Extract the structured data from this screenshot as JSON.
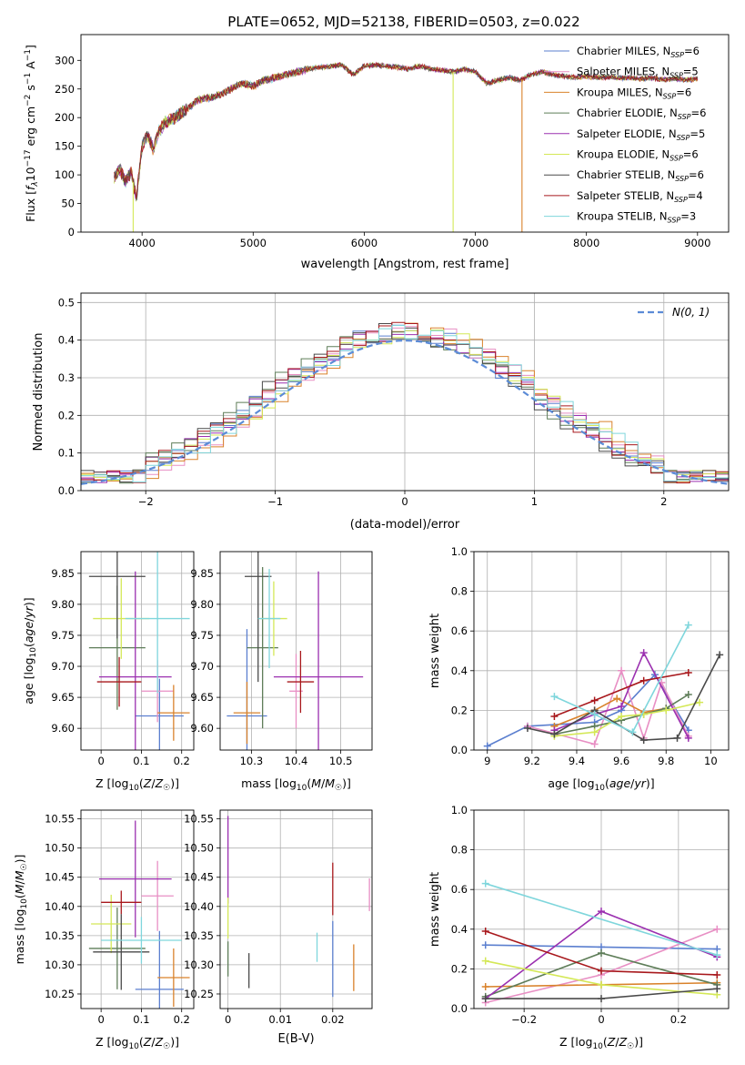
{
  "figure_title": "PLATE=0652, MJD=52138, FIBERID=0503, z=0.022",
  "colors": {
    "chabrier_miles": "#5b7fcf",
    "salpeter_miles": "#e88fc4",
    "kroupa_miles": "#d9822b",
    "chabrier_elodie": "#5e7d58",
    "salpeter_elodie": "#9b30b0",
    "kroupa_elodie": "#d4e857",
    "chabrier_stelib": "#4a4a4a",
    "salpeter_stelib": "#a8181c",
    "kroupa_stelib": "#7fd6dc",
    "normal": "#5b8bd6"
  },
  "chart_data": [
    {
      "id": "spectrum",
      "type": "line",
      "title": "PLATE=0652, MJD=52138, FIBERID=0503, z=0.022",
      "xlabel": "wavelength [Angstrom, rest frame]",
      "ylabel": "Flux [f_λ 10⁻¹⁷ erg cm⁻² s⁻¹ A⁻¹]",
      "xlim": [
        3450,
        9280
      ],
      "ylim": [
        0,
        345
      ],
      "xticks": [
        4000,
        5000,
        6000,
        7000,
        8000,
        9000
      ],
      "yticks": [
        0,
        50,
        100,
        150,
        200,
        250,
        300
      ],
      "legend_position": "top-right",
      "x": [
        3750,
        3800,
        3850,
        3900,
        3950,
        4000,
        4050,
        4100,
        4150,
        4200,
        4300,
        4400,
        4500,
        4600,
        4700,
        4800,
        4900,
        5000,
        5100,
        5200,
        5300,
        5400,
        5500,
        5600,
        5700,
        5800,
        5900,
        6000,
        6100,
        6200,
        6300,
        6400,
        6500,
        6600,
        6700,
        6800,
        6900,
        7000,
        7100,
        7200,
        7300,
        7400,
        7500,
        7600,
        7700,
        7800,
        7900,
        8000,
        8100,
        8200,
        8300,
        8400,
        8500,
        8600,
        8700,
        8800,
        8900,
        9000
      ],
      "y": [
        95,
        110,
        90,
        105,
        60,
        150,
        170,
        145,
        175,
        190,
        200,
        215,
        230,
        235,
        240,
        250,
        260,
        255,
        265,
        270,
        275,
        280,
        285,
        288,
        290,
        292,
        275,
        290,
        292,
        290,
        288,
        285,
        290,
        285,
        283,
        280,
        285,
        280,
        260,
        265,
        270,
        265,
        275,
        280,
        275,
        272,
        270,
        272,
        270,
        271,
        269,
        270,
        268,
        269,
        266,
        268,
        266,
        268
      ],
      "series": [
        {
          "name": "Chabrier MILES, N_SSP=6",
          "label_main": "Chabrier MILES, N",
          "label_sub": "SSP",
          "label_tail": "=6",
          "color_key": "chabrier_miles"
        },
        {
          "name": "Salpeter MILES, N_SSP=5",
          "label_main": "Salpeter MILES, N",
          "label_sub": "SSP",
          "label_tail": "=5",
          "color_key": "salpeter_miles"
        },
        {
          "name": "Kroupa MILES, N_SSP=6",
          "label_main": "Kroupa MILES, N",
          "label_sub": "SSP",
          "label_tail": "=6",
          "color_key": "kroupa_miles"
        },
        {
          "name": "Chabrier ELODIE, N_SSP=6",
          "label_main": "Chabrier ELODIE, N",
          "label_sub": "SSP",
          "label_tail": "=6",
          "color_key": "chabrier_elodie"
        },
        {
          "name": "Salpeter ELODIE, N_SSP=5",
          "label_main": "Salpeter ELODIE, N",
          "label_sub": "SSP",
          "label_tail": "=5",
          "color_key": "salpeter_elodie"
        },
        {
          "name": "Kroupa ELODIE, N_SSP=6",
          "label_main": "Kroupa ELODIE, N",
          "label_sub": "SSP",
          "label_tail": "=6",
          "color_key": "kroupa_elodie"
        },
        {
          "name": "Chabrier STELIB, N_SSP=6",
          "label_main": "Chabrier STELIB, N",
          "label_sub": "SSP",
          "label_tail": "=6",
          "color_key": "chabrier_stelib"
        },
        {
          "name": "Salpeter STELIB, N_SSP=4",
          "label_main": "Salpeter STELIB, N",
          "label_sub": "SSP",
          "label_tail": "=4",
          "color_key": "salpeter_stelib"
        },
        {
          "name": "Kroupa STELIB, N_SSP=3",
          "label_main": "Kroupa STELIB, N",
          "label_sub": "SSP",
          "label_tail": "=3",
          "color_key": "kroupa_stelib"
        }
      ],
      "dropouts": [
        {
          "x": 3920,
          "color_key": "kroupa_elodie"
        },
        {
          "x": 6800,
          "color_key": "kroupa_elodie"
        },
        {
          "x": 7420,
          "color_key": "kroupa_miles"
        }
      ]
    },
    {
      "id": "residuals",
      "type": "bar",
      "xlabel": "(data-model)/error",
      "ylabel": "Normed distribution",
      "xlim": [
        -2.5,
        2.5
      ],
      "ylim": [
        0,
        0.525
      ],
      "xticks": [
        -2,
        -1,
        0,
        1,
        2
      ],
      "yticks": [
        0.0,
        0.1,
        0.2,
        0.3,
        0.4,
        0.5
      ],
      "grid": true,
      "legend": {
        "label": "N(0,1)",
        "position": "top-right"
      },
      "bin_width": 0.1
    },
    {
      "id": "z_vs_age",
      "type": "scatter",
      "xlabel": "Z [log10(Z/Z☉)]",
      "ylabel": "age [log10(age/yr)]",
      "xlim": [
        -0.05,
        0.23
      ],
      "ylim": [
        9.565,
        9.885
      ],
      "xticks": [
        0.0,
        0.1,
        0.2
      ],
      "yticks": [
        9.6,
        9.65,
        9.7,
        9.75,
        9.8,
        9.85
      ],
      "grid": true,
      "points": [
        {
          "color_key": "chabrier_miles",
          "x": 0.145,
          "y": 9.62,
          "xerr": 0.06,
          "yerr": 0.06
        },
        {
          "color_key": "salpeter_miles",
          "x": 0.14,
          "y": 9.66,
          "xerr": 0.04,
          "yerr": 0.05
        },
        {
          "color_key": "kroupa_miles",
          "x": 0.18,
          "y": 9.625,
          "xerr": 0.04,
          "yerr": 0.045
        },
        {
          "color_key": "chabrier_elodie",
          "x": 0.04,
          "y": 9.73,
          "xerr": 0.07,
          "yerr": 0.1
        },
        {
          "color_key": "salpeter_elodie",
          "x": 0.085,
          "y": 9.683,
          "xerr": 0.09,
          "yerr": 0.17
        },
        {
          "color_key": "kroupa_elodie",
          "x": 0.05,
          "y": 9.777,
          "xerr": 0.07,
          "yerr": 0.065
        },
        {
          "color_key": "chabrier_stelib",
          "x": 0.04,
          "y": 9.845,
          "xerr": 0.07,
          "yerr": 0.1
        },
        {
          "color_key": "salpeter_stelib",
          "x": 0.045,
          "y": 9.675,
          "xerr": 0.055,
          "yerr": 0.04
        },
        {
          "color_key": "kroupa_stelib",
          "x": 0.14,
          "y": 9.777,
          "xerr": 0.08,
          "yerr": 0.12
        }
      ]
    },
    {
      "id": "mass_vs_age",
      "type": "scatter",
      "xlabel": "mass [log10(M/M☉)]",
      "ylabel": "",
      "xlim": [
        10.23,
        10.57
      ],
      "ylim": [
        9.565,
        9.885
      ],
      "xticks": [
        10.3,
        10.4,
        10.5
      ],
      "yticks": [
        9.6,
        9.65,
        9.7,
        9.75,
        9.8,
        9.85
      ],
      "grid": true,
      "points": [
        {
          "color_key": "chabrier_miles",
          "x": 10.29,
          "y": 9.62,
          "xerr": 0.045,
          "yerr": 0.14
        },
        {
          "color_key": "salpeter_miles",
          "x": 10.4,
          "y": 9.66,
          "xerr": 0.015,
          "yerr": 0.06
        },
        {
          "color_key": "kroupa_miles",
          "x": 10.29,
          "y": 9.625,
          "xerr": 0.03,
          "yerr": 0.05
        },
        {
          "color_key": "chabrier_elodie",
          "x": 10.325,
          "y": 9.73,
          "xerr": 0.035,
          "yerr": 0.13
        },
        {
          "color_key": "salpeter_elodie",
          "x": 10.45,
          "y": 9.683,
          "xerr": 0.1,
          "yerr": 0.17
        },
        {
          "color_key": "kroupa_elodie",
          "x": 10.35,
          "y": 9.777,
          "xerr": 0.03,
          "yerr": 0.06
        },
        {
          "color_key": "chabrier_stelib",
          "x": 10.315,
          "y": 9.845,
          "xerr": 0.03,
          "yerr": 0.17
        },
        {
          "color_key": "salpeter_stelib",
          "x": 10.41,
          "y": 9.675,
          "xerr": 0.03,
          "yerr": 0.05
        },
        {
          "color_key": "kroupa_stelib",
          "x": 10.34,
          "y": 9.777,
          "xerr": 0.025,
          "yerr": 0.08
        }
      ]
    },
    {
      "id": "age_vs_weight",
      "type": "line",
      "xlabel": "age [log10(age/yr)]",
      "ylabel": "mass weight",
      "xlim": [
        8.94,
        10.08
      ],
      "ylim": [
        0.0,
        1.0
      ],
      "xticks": [
        9.0,
        9.2,
        9.4,
        9.6,
        9.8,
        10.0
      ],
      "yticks": [
        0.0,
        0.2,
        0.4,
        0.6,
        0.8,
        1.0
      ],
      "grid": true,
      "series": [
        {
          "color_key": "chabrier_miles",
          "x": [
            9.0,
            9.18,
            9.48,
            9.6,
            9.75,
            9.9
          ],
          "y": [
            0.02,
            0.12,
            0.14,
            0.2,
            0.38,
            0.1
          ]
        },
        {
          "color_key": "salpeter_miles",
          "x": [
            9.18,
            9.48,
            9.6,
            9.7,
            9.78,
            9.9
          ],
          "y": [
            0.12,
            0.03,
            0.4,
            0.06,
            0.34,
            0.07
          ]
        },
        {
          "color_key": "kroupa_miles",
          "x": [
            9.3,
            9.48,
            9.58,
            9.7,
            9.8
          ],
          "y": [
            0.12,
            0.2,
            0.26,
            0.19,
            0.21
          ]
        },
        {
          "color_key": "chabrier_elodie",
          "x": [
            9.3,
            9.48,
            9.6,
            9.7,
            9.8,
            9.9
          ],
          "y": [
            0.08,
            0.12,
            0.15,
            0.18,
            0.21,
            0.28
          ]
        },
        {
          "color_key": "salpeter_elodie",
          "x": [
            9.3,
            9.48,
            9.6,
            9.7,
            9.9
          ],
          "y": [
            0.1,
            0.18,
            0.22,
            0.49,
            0.06
          ]
        },
        {
          "color_key": "kroupa_elodie",
          "x": [
            9.3,
            9.48,
            9.6,
            9.7,
            9.8,
            9.95
          ],
          "y": [
            0.07,
            0.09,
            0.17,
            0.18,
            0.2,
            0.24
          ]
        },
        {
          "color_key": "chabrier_stelib",
          "x": [
            9.18,
            9.3,
            9.48,
            9.7,
            9.85,
            10.04
          ],
          "y": [
            0.11,
            0.08,
            0.2,
            0.05,
            0.06,
            0.48
          ]
        },
        {
          "color_key": "salpeter_stelib",
          "x": [
            9.3,
            9.48,
            9.7,
            9.9
          ],
          "y": [
            0.17,
            0.25,
            0.35,
            0.39
          ]
        },
        {
          "color_key": "kroupa_stelib",
          "x": [
            9.3,
            9.48,
            9.65,
            9.9
          ],
          "y": [
            0.27,
            0.18,
            0.09,
            0.63
          ]
        }
      ]
    },
    {
      "id": "z_vs_mass",
      "type": "scatter",
      "xlabel": "Z [log10(Z/Z☉)]",
      "ylabel": "mass [log10(M/M☉)]",
      "xlim": [
        -0.05,
        0.23
      ],
      "ylim": [
        10.225,
        10.565
      ],
      "xticks": [
        0.0,
        0.1,
        0.2
      ],
      "yticks": [
        10.25,
        10.3,
        10.35,
        10.4,
        10.45,
        10.5,
        10.55
      ],
      "grid": true,
      "points": [
        {
          "color_key": "chabrier_miles",
          "x": 0.145,
          "y": 10.258,
          "xerr": 0.06,
          "yerr": 0.1
        },
        {
          "color_key": "salpeter_miles",
          "x": 0.14,
          "y": 10.418,
          "xerr": 0.04,
          "yerr": 0.06
        },
        {
          "color_key": "kroupa_miles",
          "x": 0.18,
          "y": 10.278,
          "xerr": 0.04,
          "yerr": 0.05
        },
        {
          "color_key": "chabrier_elodie",
          "x": 0.04,
          "y": 10.328,
          "xerr": 0.07,
          "yerr": 0.07
        },
        {
          "color_key": "salpeter_elodie",
          "x": 0.085,
          "y": 10.447,
          "xerr": 0.09,
          "yerr": 0.1
        },
        {
          "color_key": "kroupa_elodie",
          "x": 0.025,
          "y": 10.37,
          "xerr": 0.05,
          "yerr": 0.05
        },
        {
          "color_key": "chabrier_stelib",
          "x": 0.05,
          "y": 10.322,
          "xerr": 0.07,
          "yerr": 0.065
        },
        {
          "color_key": "salpeter_stelib",
          "x": 0.05,
          "y": 10.407,
          "xerr": 0.05,
          "yerr": 0.02
        },
        {
          "color_key": "kroupa_stelib",
          "x": 0.1,
          "y": 10.342,
          "xerr": 0.1,
          "yerr": 0.04
        }
      ]
    },
    {
      "id": "ebv_vs_mass",
      "type": "scatter",
      "xlabel": "E(B-V)",
      "ylabel": "",
      "xlim": [
        -0.0015,
        0.0275
      ],
      "ylim": [
        10.225,
        10.565
      ],
      "xticks": [
        0.0,
        0.01,
        0.02
      ],
      "yticks": [
        10.25,
        10.3,
        10.35,
        10.4,
        10.45,
        10.5,
        10.55
      ],
      "grid": true,
      "points": [
        {
          "color_key": "chabrier_miles",
          "x": 0.02,
          "y": 10.31,
          "yerr": 0.065
        },
        {
          "color_key": "salpeter_miles",
          "x": 0.027,
          "y": 10.42,
          "yerr": 0.028
        },
        {
          "color_key": "kroupa_miles",
          "x": 0.024,
          "y": 10.295,
          "yerr": 0.04
        },
        {
          "color_key": "chabrier_elodie",
          "x": 0.0,
          "y": 10.31,
          "yerr": 0.03
        },
        {
          "color_key": "salpeter_elodie",
          "x": 0.0,
          "y": 10.48,
          "yerr": 0.075
        },
        {
          "color_key": "kroupa_elodie",
          "x": 0.0,
          "y": 10.38,
          "yerr": 0.035
        },
        {
          "color_key": "chabrier_stelib",
          "x": 0.004,
          "y": 10.29,
          "yerr": 0.03
        },
        {
          "color_key": "salpeter_stelib",
          "x": 0.02,
          "y": 10.43,
          "yerr": 0.045
        },
        {
          "color_key": "kroupa_stelib",
          "x": 0.017,
          "y": 10.33,
          "yerr": 0.025
        }
      ]
    },
    {
      "id": "z_vs_weight",
      "type": "line",
      "xlabel": "Z [log10(Z/Z☉)]",
      "ylabel": "mass weight",
      "xlim": [
        -0.33,
        0.33
      ],
      "ylim": [
        0.0,
        1.0
      ],
      "xticks": [
        -0.2,
        0.0,
        0.2
      ],
      "yticks": [
        0.0,
        0.2,
        0.4,
        0.6,
        0.8,
        1.0
      ],
      "grid": true,
      "series": [
        {
          "color_key": "chabrier_miles",
          "x": [
            -0.3,
            0.0,
            0.3
          ],
          "y": [
            0.32,
            0.31,
            0.3
          ]
        },
        {
          "color_key": "salpeter_miles",
          "x": [
            -0.3,
            0.0,
            0.3
          ],
          "y": [
            0.03,
            0.17,
            0.4
          ]
        },
        {
          "color_key": "kroupa_miles",
          "x": [
            -0.3,
            0.0,
            0.3
          ],
          "y": [
            0.11,
            0.12,
            0.13
          ]
        },
        {
          "color_key": "chabrier_elodie",
          "x": [
            -0.3,
            0.0,
            0.3
          ],
          "y": [
            0.06,
            0.28,
            0.12
          ]
        },
        {
          "color_key": "salpeter_elodie",
          "x": [
            -0.3,
            0.0,
            0.3
          ],
          "y": [
            0.05,
            0.49,
            0.26
          ]
        },
        {
          "color_key": "kroupa_elodie",
          "x": [
            -0.3,
            0.0,
            0.3
          ],
          "y": [
            0.24,
            0.12,
            0.07
          ]
        },
        {
          "color_key": "chabrier_stelib",
          "x": [
            -0.3,
            0.0,
            0.3
          ],
          "y": [
            0.05,
            0.05,
            0.1
          ]
        },
        {
          "color_key": "salpeter_stelib",
          "x": [
            -0.3,
            0.0,
            0.3
          ],
          "y": [
            0.39,
            0.19,
            0.17
          ]
        },
        {
          "color_key": "kroupa_stelib",
          "x": [
            -0.3,
            0.3
          ],
          "y": [
            0.63,
            0.27
          ]
        }
      ]
    }
  ]
}
